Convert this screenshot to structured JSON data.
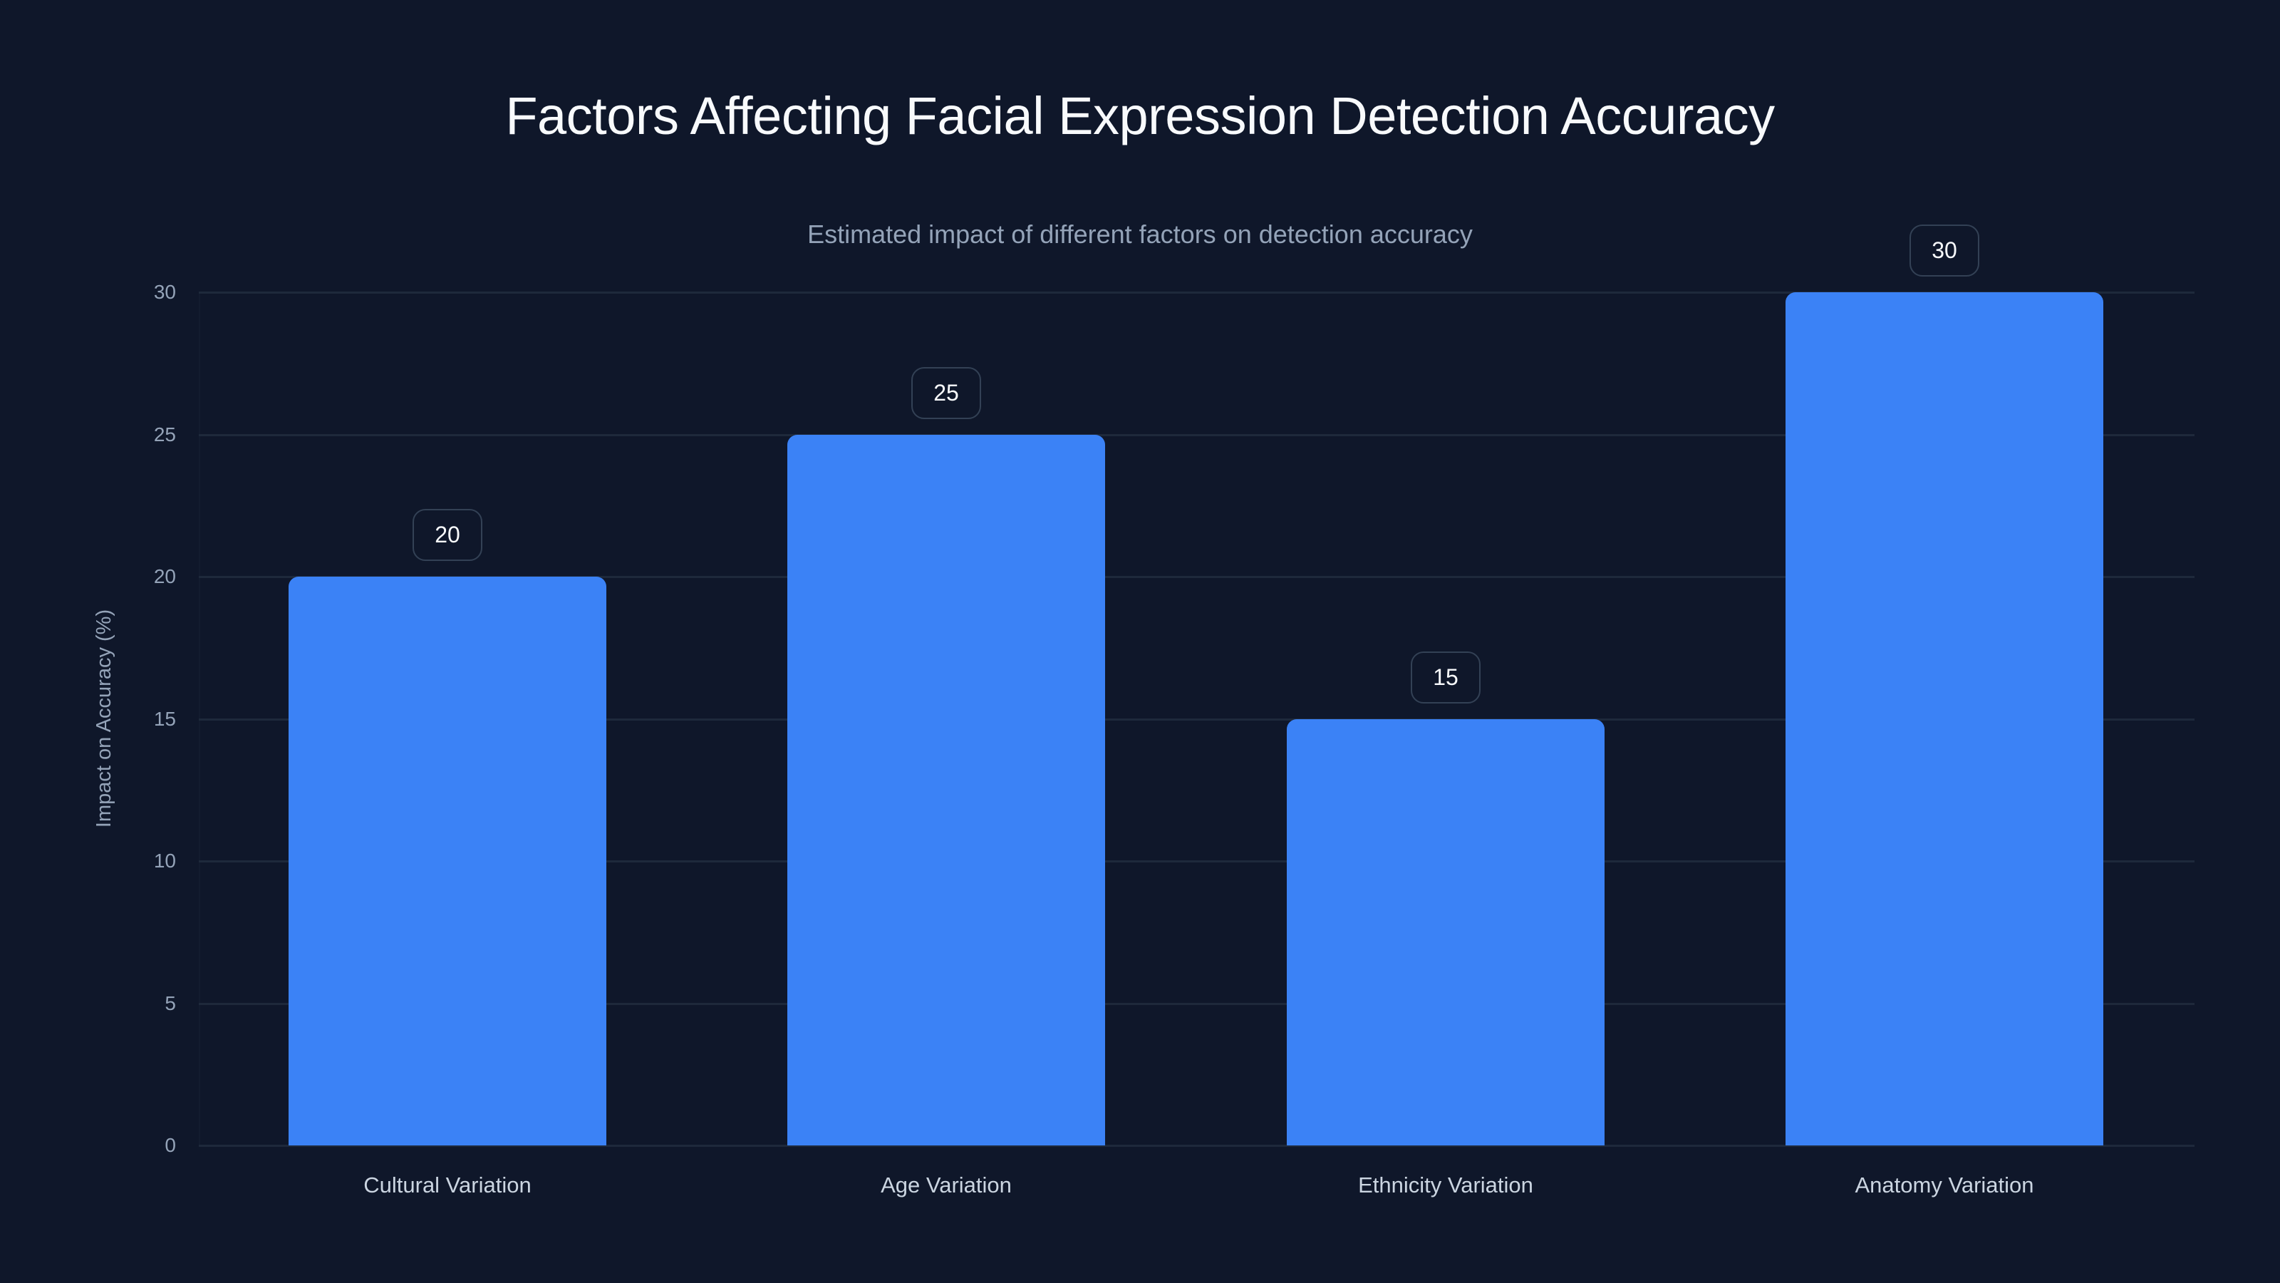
{
  "title": "Factors Affecting Facial Expression Detection Accuracy",
  "subtitle": "Estimated impact of different factors on detection accuracy",
  "colors": {
    "background": "#0f172a",
    "bar": "#3b82f6",
    "grid": "#1e293b",
    "label_border": "#334155",
    "title": "#f8fafc",
    "muted_text": "#94a3b8",
    "x_label_text": "#cbd5e1"
  },
  "chart_data": {
    "type": "bar",
    "title": "Factors Affecting Facial Expression Detection Accuracy",
    "subtitle": "Estimated impact of different factors on detection accuracy",
    "categories": [
      "Cultural Variation",
      "Age Variation",
      "Ethnicity Variation",
      "Anatomy Variation"
    ],
    "values": [
      20,
      25,
      15,
      30
    ],
    "xlabel": "",
    "ylabel": "Impact on Accuracy (%)",
    "ylim": [
      0,
      30
    ],
    "yticks": [
      "0",
      "5",
      "10",
      "15",
      "20",
      "25",
      "30"
    ],
    "grid": true,
    "legend": null,
    "data_labels": [
      "20",
      "25",
      "15",
      "30"
    ]
  }
}
